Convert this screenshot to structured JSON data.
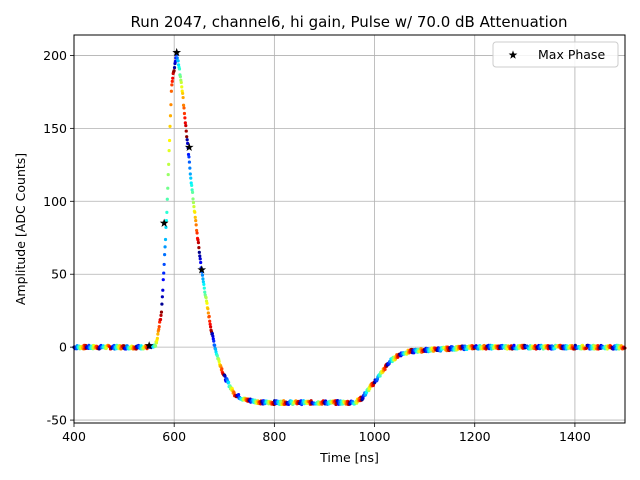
{
  "chart_data": {
    "type": "scatter",
    "title": "Run 2047, channel6, hi gain, Pulse w/ 70.0 dB Attenuation",
    "xlabel": "Time [ns]",
    "ylabel": "Amplitude [ADC Counts]",
    "xlim": [
      400,
      1500
    ],
    "ylim": [
      -52,
      214
    ],
    "xticks": [
      400,
      600,
      800,
      1000,
      1200,
      1400
    ],
    "yticks": [
      -50,
      0,
      50,
      100,
      150,
      200
    ],
    "grid": true,
    "legend_position": "upper-right",
    "colormap": "jet",
    "pulse_shape": {
      "t": [
        400,
        560,
        565,
        575,
        585,
        595,
        605,
        615,
        625,
        635,
        645,
        655,
        665,
        675,
        685,
        700,
        720,
        740,
        760,
        780,
        800,
        850,
        900,
        960,
        975,
        990,
        1000,
        1015,
        1030,
        1050,
        1070,
        1100,
        1150,
        1200,
        1300,
        1400,
        1500
      ],
      "amp": [
        0,
        0,
        3,
        25,
        90,
        180,
        202,
        180,
        145,
        110,
        80,
        52,
        30,
        10,
        -5,
        -20,
        -32,
        -36,
        -37,
        -38,
        -38,
        -38,
        -38,
        -38,
        -35,
        -28,
        -24,
        -17,
        -10,
        -5,
        -3,
        -2,
        -1,
        0,
        0,
        0,
        0
      ]
    },
    "series": [
      {
        "name": "Max Phase",
        "marker": "star",
        "x": [
          550,
          580,
          605,
          630,
          655
        ],
        "y": [
          1,
          85,
          202,
          137,
          53
        ]
      }
    ]
  }
}
